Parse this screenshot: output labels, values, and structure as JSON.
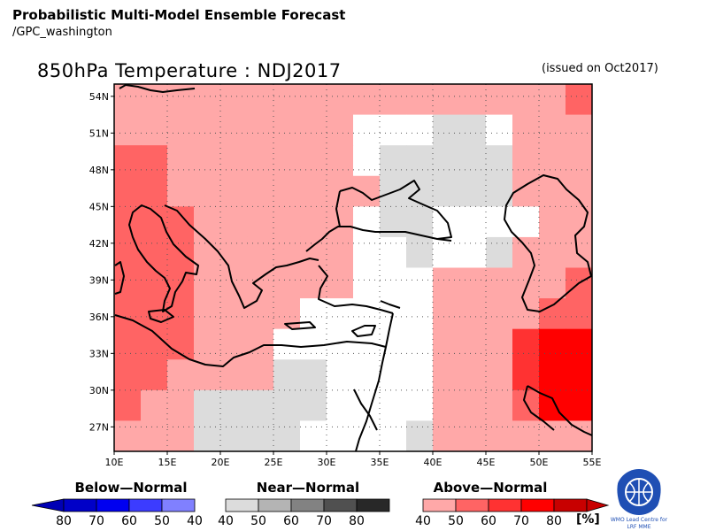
{
  "header": {
    "title": "Probabilistic Multi-Model Ensemble Forecast",
    "subtitle": "/GPC_washington"
  },
  "map": {
    "title": "850hPa Temperature : NDJ2017",
    "issued": "(issued on Oct2017)",
    "lat_labels": [
      "54N",
      "51N",
      "48N",
      "45N",
      "42N",
      "39N",
      "36N",
      "33N",
      "30N",
      "27N"
    ],
    "lon_labels": [
      "10E",
      "15E",
      "20E",
      "25E",
      "30E",
      "35E",
      "40E",
      "45E",
      "50E",
      "55E"
    ],
    "lon_range": [
      10,
      55
    ],
    "lat_range": [
      25,
      55
    ],
    "grid_resolution_deg": 2.5,
    "category_colors": {
      "above_40": "#ffa8a8",
      "above_50": "#ff6464",
      "above_60": "#ff3232",
      "above_70": "#ff0000",
      "near_40": "#dcdcdc",
      "white": "#ffffff"
    },
    "probability_rows_north_to_south": [
      "AAAAAAAAAAAAAAAAAB",
      "AAAAAAAAAWWWNNWAAA",
      "BBAAAAAAAWNNNNNAAA",
      "BBAAAAAAAANNNNNAAA",
      "BBBAAAAAAWNNWWWWAA",
      "BBBAAAAAAWWNWWNAAA",
      "BBBAAAAAAWWWAAAAAB",
      "BBBAAAAWWWWWAAAABB",
      "BBBAAAWWWWWWAAAcCC",
      "BBAAAANNWWWWAAAcCC",
      "BAANNNNNWWWWAAABCC",
      "AAANNNNWWWWNAAAAAA"
    ]
  },
  "legend": {
    "below": {
      "title": "Below—Normal",
      "ticks": [
        "80",
        "70",
        "60",
        "50",
        "40"
      ],
      "colors": [
        "#0000c8",
        "#0000f0",
        "#3c3cff",
        "#8080ff"
      ]
    },
    "near": {
      "title": "Near—Normal",
      "ticks": [
        "40",
        "50",
        "60",
        "70",
        "80"
      ],
      "colors": [
        "#dcdcdc",
        "#b4b4b4",
        "#828282",
        "#505050",
        "#282828"
      ]
    },
    "above": {
      "title": "Above—Normal",
      "ticks": [
        "40",
        "50",
        "60",
        "70",
        "80"
      ],
      "unit": "[%]",
      "colors": [
        "#ffa8a8",
        "#ff6464",
        "#ff3232",
        "#ff0000",
        "#c80000"
      ]
    }
  },
  "logo": {
    "caption_line1": "WMO Lead Centre for",
    "caption_line2": "LRF MME"
  }
}
